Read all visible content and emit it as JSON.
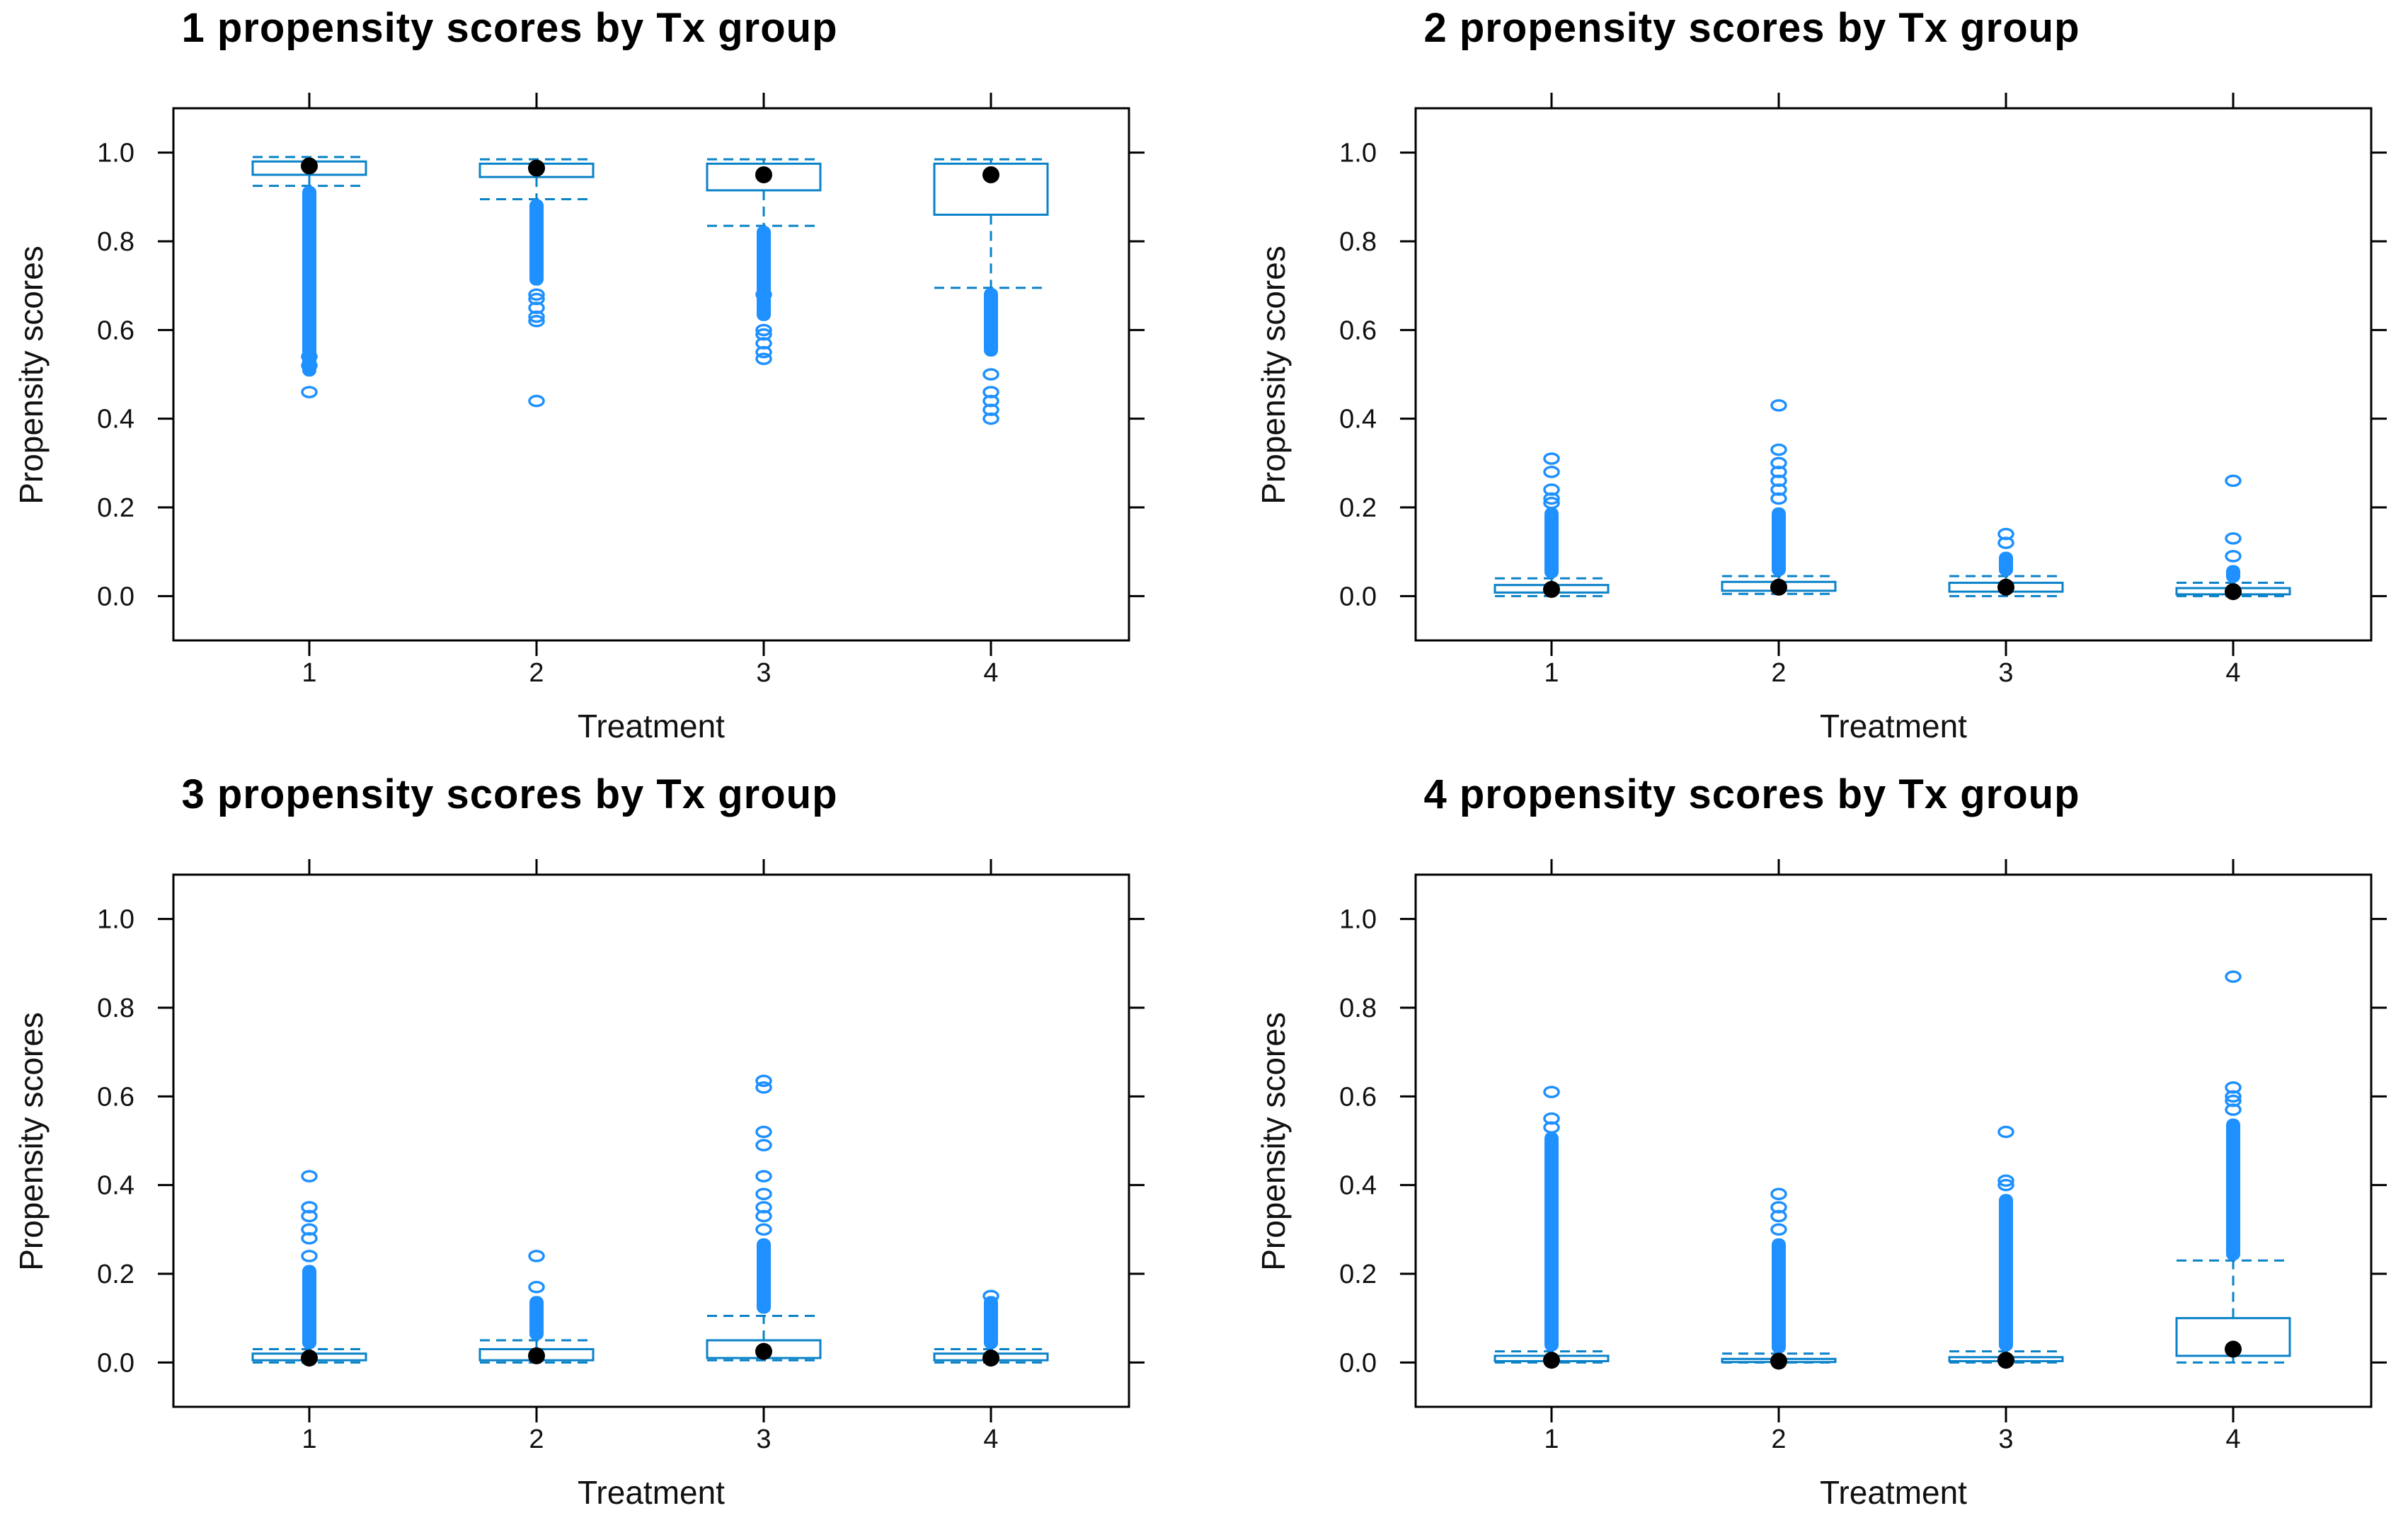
{
  "figure": {
    "x_label": "Treatment",
    "y_label": "Propensity scores",
    "x_ticks": [
      "1",
      "2",
      "3",
      "4"
    ],
    "y_ticks": [
      "0.0",
      "0.2",
      "0.4",
      "0.6",
      "0.8",
      "1.0"
    ],
    "box_color": "#1e90ff",
    "box_border_color": "#0a82c8",
    "median_color": "#000000"
  },
  "chart_data": [
    {
      "type": "box",
      "title": "1  propensity scores by Tx group",
      "ylim": [
        -0.1,
        1.1
      ],
      "groups": [
        {
          "x": "1",
          "lower_whisker": 0.925,
          "q1": 0.95,
          "median": 0.97,
          "q3": 0.98,
          "upper_whisker": 0.99,
          "outlier_range": [
            0.495,
            0.925
          ],
          "outliers": [
            0.46,
            0.52,
            0.54
          ]
        },
        {
          "x": "2",
          "lower_whisker": 0.895,
          "q1": 0.945,
          "median": 0.965,
          "q3": 0.975,
          "upper_whisker": 0.985,
          "outlier_range": [
            0.7,
            0.895
          ],
          "outliers": [
            0.44,
            0.62,
            0.63,
            0.65,
            0.67,
            0.68
          ]
        },
        {
          "x": "3",
          "lower_whisker": 0.835,
          "q1": 0.915,
          "median": 0.95,
          "q3": 0.975,
          "upper_whisker": 0.985,
          "outlier_range": [
            0.62,
            0.835
          ],
          "outliers": [
            0.535,
            0.55,
            0.57,
            0.59,
            0.6,
            0.68
          ]
        },
        {
          "x": "4",
          "lower_whisker": 0.695,
          "q1": 0.86,
          "median": 0.95,
          "q3": 0.975,
          "upper_whisker": 0.985,
          "outlier_range": [
            0.54,
            0.695
          ],
          "outliers": [
            0.4,
            0.42,
            0.44,
            0.46,
            0.5
          ]
        }
      ]
    },
    {
      "type": "box",
      "title": "2  propensity scores by Tx group",
      "ylim": [
        -0.1,
        1.1
      ],
      "groups": [
        {
          "x": "1",
          "lower_whisker": 0.0,
          "q1": 0.008,
          "median": 0.015,
          "q3": 0.025,
          "upper_whisker": 0.04,
          "outlier_range": [
            0.04,
            0.2
          ],
          "outliers": [
            0.21,
            0.22,
            0.24,
            0.28,
            0.31
          ]
        },
        {
          "x": "2",
          "lower_whisker": 0.005,
          "q1": 0.012,
          "median": 0.02,
          "q3": 0.032,
          "upper_whisker": 0.045,
          "outlier_range": [
            0.045,
            0.2
          ],
          "outliers": [
            0.22,
            0.24,
            0.26,
            0.28,
            0.3,
            0.33,
            0.43
          ]
        },
        {
          "x": "3",
          "lower_whisker": 0.0,
          "q1": 0.01,
          "median": 0.02,
          "q3": 0.03,
          "upper_whisker": 0.045,
          "outlier_range": [
            0.045,
            0.1
          ],
          "outliers": [
            0.12,
            0.14
          ]
        },
        {
          "x": "4",
          "lower_whisker": 0.0,
          "q1": 0.004,
          "median": 0.01,
          "q3": 0.018,
          "upper_whisker": 0.03,
          "outlier_range": [
            0.03,
            0.07
          ],
          "outliers": [
            0.09,
            0.13,
            0.26
          ]
        }
      ]
    },
    {
      "type": "box",
      "title": "3  propensity scores by Tx group",
      "ylim": [
        -0.1,
        1.1
      ],
      "groups": [
        {
          "x": "1",
          "lower_whisker": 0.0,
          "q1": 0.005,
          "median": 0.01,
          "q3": 0.02,
          "upper_whisker": 0.03,
          "outlier_range": [
            0.03,
            0.22
          ],
          "outliers": [
            0.24,
            0.28,
            0.3,
            0.33,
            0.35,
            0.42
          ]
        },
        {
          "x": "2",
          "lower_whisker": 0.0,
          "q1": 0.005,
          "median": 0.015,
          "q3": 0.03,
          "upper_whisker": 0.05,
          "outlier_range": [
            0.05,
            0.15
          ],
          "outliers": [
            0.17,
            0.24
          ]
        },
        {
          "x": "3",
          "lower_whisker": 0.005,
          "q1": 0.01,
          "median": 0.025,
          "q3": 0.05,
          "upper_whisker": 0.105,
          "outlier_range": [
            0.11,
            0.28
          ],
          "outliers": [
            0.3,
            0.33,
            0.35,
            0.38,
            0.42,
            0.49,
            0.52,
            0.62,
            0.635
          ]
        },
        {
          "x": "4",
          "lower_whisker": 0.0,
          "q1": 0.005,
          "median": 0.01,
          "q3": 0.02,
          "upper_whisker": 0.03,
          "outlier_range": [
            0.03,
            0.15
          ],
          "outliers": [
            0.15
          ]
        }
      ]
    },
    {
      "type": "box",
      "title": "4  propensity scores by Tx group",
      "ylim": [
        -0.1,
        1.1
      ],
      "groups": [
        {
          "x": "1",
          "lower_whisker": 0.0,
          "q1": 0.003,
          "median": 0.005,
          "q3": 0.015,
          "upper_whisker": 0.025,
          "outlier_range": [
            0.025,
            0.52
          ],
          "outliers": [
            0.53,
            0.55,
            0.61
          ]
        },
        {
          "x": "2",
          "lower_whisker": 0.0,
          "q1": 0.001,
          "median": 0.003,
          "q3": 0.008,
          "upper_whisker": 0.02,
          "outlier_range": [
            0.02,
            0.28
          ],
          "outliers": [
            0.3,
            0.33,
            0.35,
            0.38
          ]
        },
        {
          "x": "3",
          "lower_whisker": 0.0,
          "q1": 0.003,
          "median": 0.005,
          "q3": 0.012,
          "upper_whisker": 0.025,
          "outlier_range": [
            0.025,
            0.38
          ],
          "outliers": [
            0.4,
            0.41,
            0.52
          ]
        },
        {
          "x": "4",
          "lower_whisker": 0.0,
          "q1": 0.015,
          "median": 0.03,
          "q3": 0.1,
          "upper_whisker": 0.23,
          "outlier_range": [
            0.23,
            0.55
          ],
          "outliers": [
            0.57,
            0.59,
            0.6,
            0.62,
            0.87
          ]
        }
      ]
    }
  ]
}
